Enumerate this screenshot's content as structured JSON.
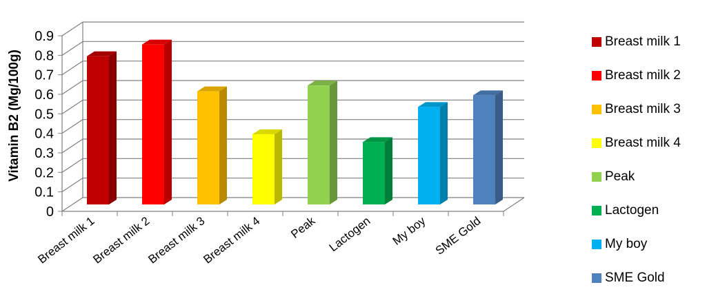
{
  "chart_data": {
    "type": "bar",
    "ylabel": "Vitamin B2 (Mg/100g)",
    "ylim": [
      0,
      0.9
    ],
    "yticks": [
      "0",
      "0.1",
      "0.2",
      "0.3",
      "0.4",
      "0.5",
      "0.6",
      "0.7",
      "0.8",
      "0.9"
    ],
    "grid": true,
    "legend_position": "right",
    "categories": [
      "Breast milk 1",
      "Breast milk 2",
      "Breast milk 3",
      "Breast milk 4",
      "Peak",
      "Lactogen",
      "My boy",
      "SME Gold"
    ],
    "values": [
      0.76,
      0.82,
      0.58,
      0.36,
      0.61,
      0.32,
      0.5,
      0.56
    ],
    "colors": [
      "#C00000",
      "#FF0000",
      "#FFC000",
      "#FFFF00",
      "#92D050",
      "#00B050",
      "#00B0F0",
      "#4F81BD"
    ]
  }
}
